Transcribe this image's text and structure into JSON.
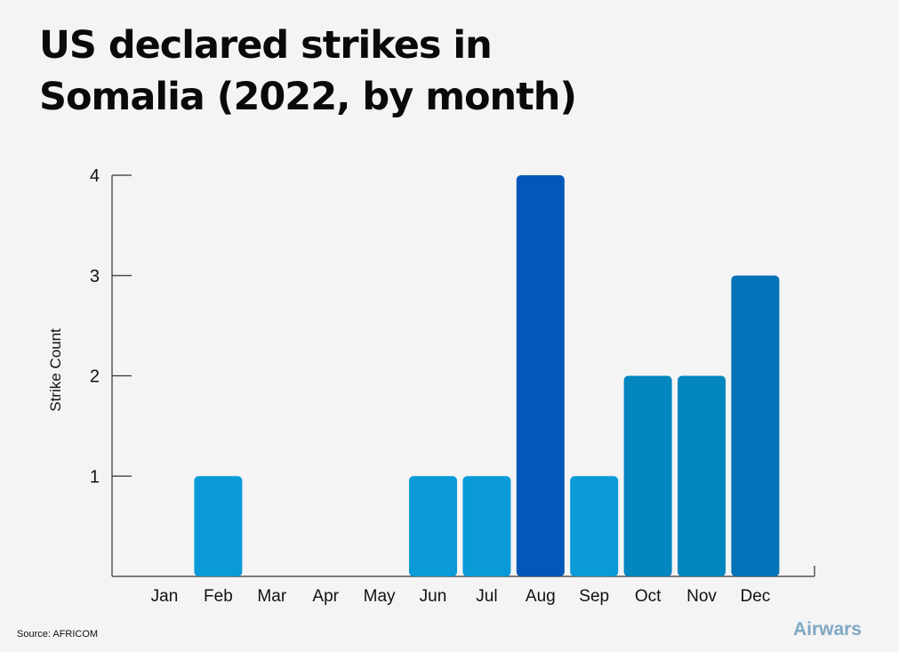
{
  "header": {
    "title_line1": "US declared strikes in",
    "title_line2": "Somalia (2022, by month)"
  },
  "footer": {
    "source": "Source: AFRICOM",
    "brand": "Airwars"
  },
  "chart_data": {
    "type": "bar",
    "ylabel": "Strike Count",
    "ylim": [
      0,
      4
    ],
    "yticks": [
      1,
      2,
      3,
      4
    ],
    "grid": false,
    "categories": [
      "Jan",
      "Feb",
      "Mar",
      "Apr",
      "May",
      "Jun",
      "Jul",
      "Aug",
      "Sep",
      "Oct",
      "Nov",
      "Dec"
    ],
    "values": [
      0,
      1,
      0,
      0,
      0,
      1,
      1,
      4,
      1,
      2,
      2,
      3
    ],
    "colors": [
      "#0a9ad8",
      "#0a9ad8",
      "#0a9ad8",
      "#0a9ad8",
      "#0a9ad8",
      "#0a9ad8",
      "#0a9ad8",
      "#0457b8",
      "#0a9ad8",
      "#0486bf",
      "#0486bf",
      "#0472b8"
    ]
  }
}
